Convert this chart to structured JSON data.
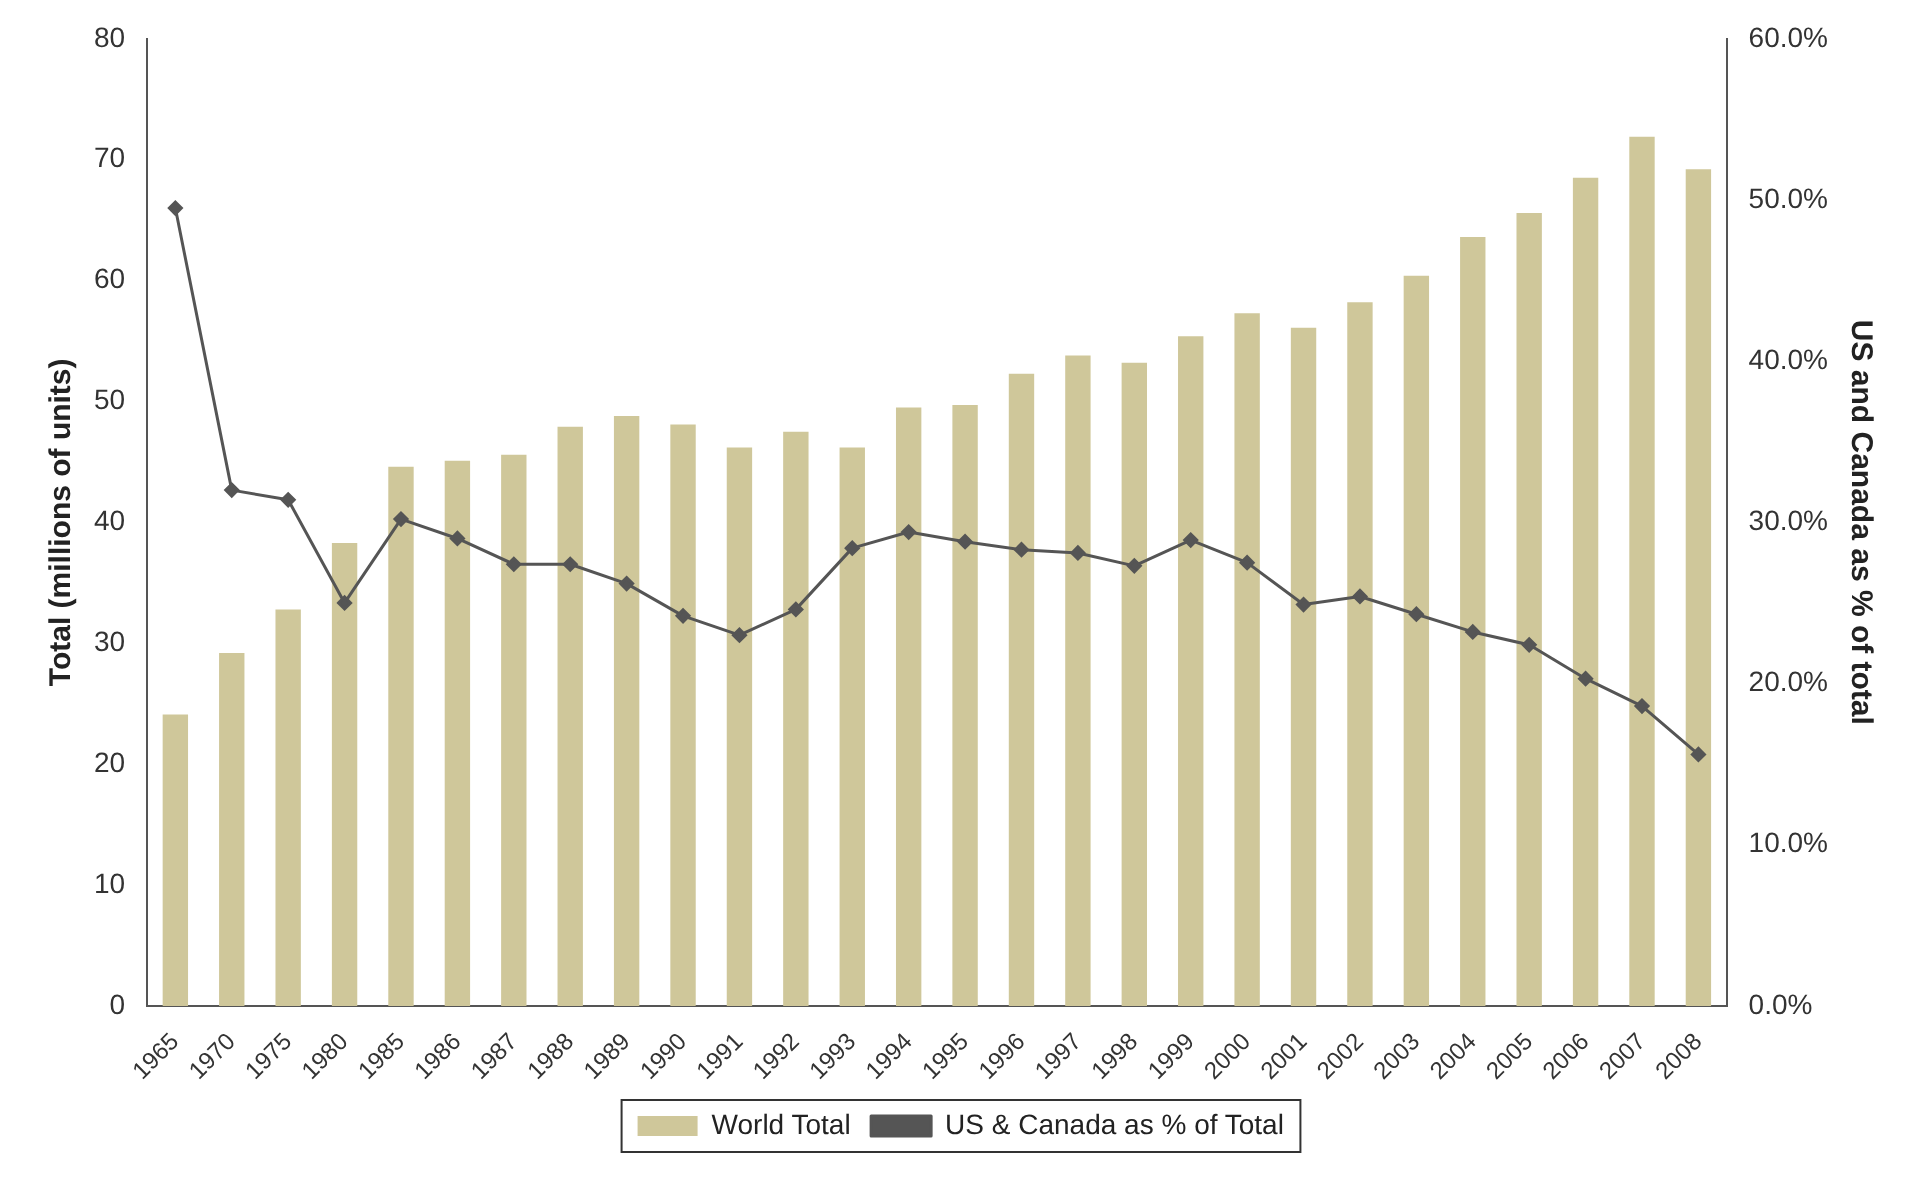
{
  "chart_data": {
    "type": "bar",
    "ylabel": "Total (millions of units)",
    "y2label": "US and Canada as % of total",
    "categories": [
      "1965",
      "1970",
      "1975",
      "1980",
      "1985",
      "1986",
      "1987",
      "1988",
      "1989",
      "1990",
      "1991",
      "1992",
      "1993",
      "1994",
      "1995",
      "1996",
      "1997",
      "1998",
      "1999",
      "2000",
      "2001",
      "2002",
      "2003",
      "2004",
      "2005",
      "2006",
      "2007",
      "2008"
    ],
    "series": [
      {
        "name": "World Total",
        "color": "#cfc79a",
        "values": [
          24.1,
          29.2,
          32.8,
          38.3,
          44.6,
          45.1,
          45.6,
          47.9,
          48.8,
          48.1,
          46.2,
          47.5,
          46.2,
          49.5,
          49.7,
          52.3,
          53.8,
          53.2,
          55.4,
          57.3,
          56.1,
          58.2,
          60.4,
          63.6,
          65.6,
          68.5,
          71.9,
          69.2
        ]
      },
      {
        "name": "US & Canada as % of Total",
        "type": "line",
        "axis": "y2",
        "color": "#555555",
        "values": [
          49.5,
          32.0,
          31.4,
          25.0,
          30.2,
          29.0,
          27.4,
          27.4,
          26.2,
          24.2,
          23.0,
          24.6,
          28.4,
          29.4,
          28.8,
          28.3,
          28.1,
          27.3,
          28.9,
          27.5,
          24.9,
          25.4,
          24.3,
          23.2,
          22.4,
          20.3,
          18.6,
          15.6
        ]
      }
    ],
    "ylim": [
      0,
      80
    ],
    "yticks": [
      0,
      10,
      20,
      30,
      40,
      50,
      60,
      70,
      80
    ],
    "y2lim": [
      0,
      60
    ],
    "y2ticks": [
      {
        "value": 0,
        "label": "0.0%"
      },
      {
        "value": 10,
        "label": "10.0%"
      },
      {
        "value": 20,
        "label": "20.0%"
      },
      {
        "value": 30,
        "label": "30.0%"
      },
      {
        "value": 40,
        "label": "40.0%"
      },
      {
        "value": 50,
        "label": "50.0%"
      },
      {
        "value": 60,
        "label": "60.0%"
      }
    ],
    "grid": false,
    "legend": "bottom",
    "marker": "diamond",
    "line_style": "solid"
  }
}
